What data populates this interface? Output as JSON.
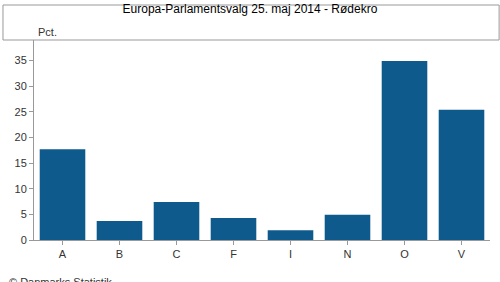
{
  "chart_data": {
    "type": "bar",
    "title": "Europa-Parlamentsvalg 25. maj 2014 - Rødekro",
    "ylabel": "Pct.",
    "categories": [
      "A",
      "B",
      "C",
      "F",
      "I",
      "N",
      "O",
      "V"
    ],
    "values": [
      17.7,
      3.7,
      7.4,
      4.3,
      1.9,
      4.9,
      34.9,
      25.4
    ],
    "color": "#0f5a8c",
    "ylim": [
      0,
      39
    ],
    "yticks": [
      0,
      5,
      10,
      15,
      20,
      25,
      30,
      35
    ],
    "grid": false,
    "annotations": [
      "© Danmarks Statistik"
    ]
  }
}
